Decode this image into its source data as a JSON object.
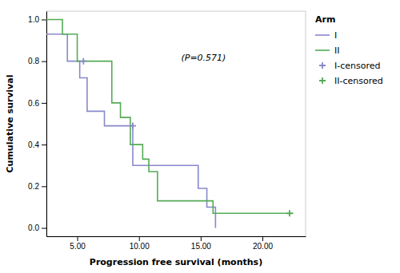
{
  "chart_data": {
    "type": "line",
    "xlabel": "Progression free survival (months)",
    "ylabel": "Cumulative survival",
    "annotations": [
      {
        "text": "(P=0.571)"
      }
    ],
    "legend_title": "Arm",
    "legend": "right",
    "xlim": [
      2.5,
      23.5
    ],
    "ylim": [
      -0.04,
      1.04
    ],
    "xticks": [
      {
        "value": 5.0,
        "label": "5.00"
      },
      {
        "value": 10.0,
        "label": "10.00"
      },
      {
        "value": 15.0,
        "label": "15.00"
      },
      {
        "value": 20.0,
        "label": "20.00"
      }
    ],
    "yticks": [
      {
        "value": 0.0,
        "label": "0.0"
      },
      0.2,
      0.4,
      0.6,
      0.8,
      {
        "value": 1.0,
        "label": "1.0"
      }
    ],
    "series": [
      {
        "name": "I",
        "type": "line",
        "color": "#8888cc",
        "x": [
          2.5,
          4.2,
          4.2,
          5.2,
          5.2,
          5.8,
          5.8,
          7.2,
          7.2,
          8.2,
          8.2,
          9.5,
          9.5,
          10.3,
          10.3,
          14.8,
          14.8,
          15.5,
          15.5,
          16.2,
          16.2
        ],
        "values": [
          0.93,
          0.93,
          0.8,
          0.8,
          0.72,
          0.72,
          0.56,
          0.56,
          0.49,
          0.49,
          0.49,
          0.49,
          0.3,
          0.3,
          0.3,
          0.3,
          0.19,
          0.19,
          0.1,
          0.1,
          0.0
        ]
      },
      {
        "name": "II",
        "type": "line",
        "color": "#55aa55",
        "x": [
          2.5,
          3.8,
          3.8,
          5.0,
          5.0,
          7.8,
          7.8,
          8.5,
          8.5,
          9.3,
          9.3,
          10.3,
          10.3,
          10.8,
          10.8,
          11.5,
          11.5,
          13.0,
          13.0,
          15.0,
          15.0,
          16.0,
          16.0,
          17.5,
          17.5,
          22.5
        ],
        "values": [
          1.0,
          1.0,
          0.93,
          0.93,
          0.8,
          0.8,
          0.6,
          0.6,
          0.53,
          0.53,
          0.4,
          0.4,
          0.33,
          0.33,
          0.27,
          0.27,
          0.13,
          0.13,
          0.13,
          0.13,
          0.13,
          0.13,
          0.07,
          0.07,
          0.07,
          0.07
        ]
      },
      {
        "name": "I-censored",
        "type": "scatter",
        "marker": "plus",
        "color": "#8888cc",
        "x": [
          5.5,
          9.5
        ],
        "values": [
          0.8,
          0.49
        ]
      },
      {
        "name": "II-censored",
        "type": "scatter",
        "marker": "plus",
        "color": "#55aa55",
        "x": [
          22.2
        ],
        "values": [
          0.07
        ]
      }
    ]
  }
}
